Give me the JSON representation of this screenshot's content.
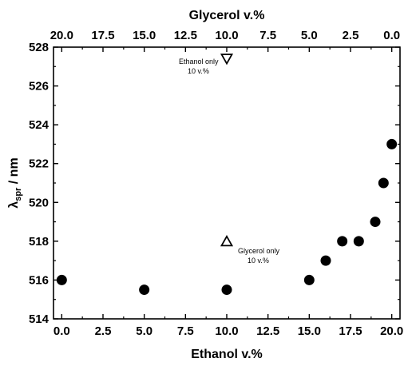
{
  "chart_data": {
    "type": "scatter",
    "xlabel": "Ethanol v.%",
    "x2label": "Glycerol v.%",
    "ylabel_main": "λ",
    "ylabel_sub": "spr",
    "ylabel_rest": " / nm",
    "xlim": [
      -0.5,
      20.5
    ],
    "ylim": [
      514,
      528
    ],
    "xticks": [
      "0.0",
      "2.5",
      "5.0",
      "7.5",
      "10.0",
      "12.5",
      "15.0",
      "17.5",
      "20.0"
    ],
    "x2ticks": [
      "20.0",
      "17.5",
      "15.0",
      "12.5",
      "10.0",
      "7.5",
      "5.0",
      "2.5",
      "0.0"
    ],
    "yticks": [
      "514",
      "516",
      "518",
      "520",
      "522",
      "524",
      "526",
      "528"
    ],
    "grid": false,
    "series": [
      {
        "marker": "filled-circle",
        "points": [
          {
            "x": 0,
            "y": 516
          },
          {
            "x": 5,
            "y": 515.5
          },
          {
            "x": 10,
            "y": 515.5
          },
          {
            "x": 15,
            "y": 516
          },
          {
            "x": 16,
            "y": 517
          },
          {
            "x": 17,
            "y": 518
          },
          {
            "x": 18,
            "y": 518
          },
          {
            "x": 19,
            "y": 519
          },
          {
            "x": 19.5,
            "y": 521
          },
          {
            "x": 20,
            "y": 523
          }
        ]
      },
      {
        "marker": "open-triangle-down",
        "points": [
          {
            "x": 10,
            "y": 527.4
          }
        ]
      },
      {
        "marker": "open-triangle-up",
        "points": [
          {
            "x": 10,
            "y": 518
          }
        ]
      }
    ],
    "annotations": [
      {
        "line1": "Ethanol only",
        "line2": "10 v.%"
      },
      {
        "line1": "Glycerol only",
        "line2": "10 v.%"
      }
    ]
  }
}
